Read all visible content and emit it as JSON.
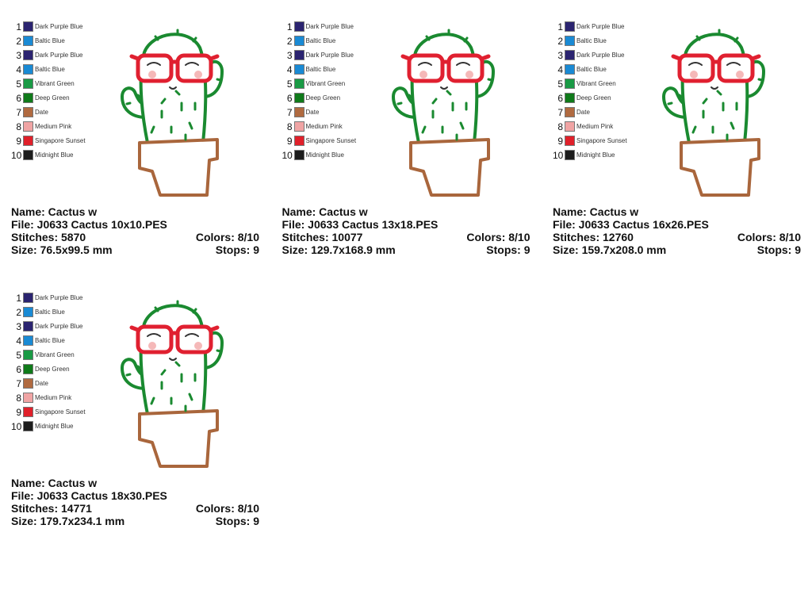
{
  "cards": [
    {
      "name": "Name: Cactus w",
      "file": "File: J0633 Cactus 10x10.PES",
      "stitches": "Stitches: 5870",
      "colors": "Colors: 8/10",
      "size": "Size: 76.5x99.5 mm",
      "stops": "Stops: 9"
    },
    {
      "name": "Name: Cactus w",
      "file": "File: J0633 Cactus 13x18.PES",
      "stitches": "Stitches: 10077",
      "colors": "Colors: 8/10",
      "size": "Size: 129.7x168.9 mm",
      "stops": "Stops: 9"
    },
    {
      "name": "Name: Cactus w",
      "file": "File: J0633 Cactus 16x26.PES",
      "stitches": "Stitches: 12760",
      "colors": "Colors: 8/10",
      "size": "Size: 159.7x208.0 mm",
      "stops": "Stops: 9"
    },
    {
      "name": "Name: Cactus w",
      "file": "File: J0633 Cactus 18x30.PES",
      "stitches": "Stitches: 14771",
      "colors": "Colors: 8/10",
      "size": "Size: 179.7x234.1 mm",
      "stops": "Stops: 9"
    }
  ],
  "palette": [
    {
      "number": 1,
      "name": "Dark Purple Blue",
      "color": "#2b2470"
    },
    {
      "number": 2,
      "name": "Baltic Blue",
      "color": "#1a8ad4"
    },
    {
      "number": 3,
      "name": "Dark Purple Blue",
      "color": "#2b2470"
    },
    {
      "number": 4,
      "name": "Baltic Blue",
      "color": "#1a8ad4"
    },
    {
      "number": 5,
      "name": "Vibrant Green",
      "color": "#1a9a45"
    },
    {
      "number": 6,
      "name": "Deep Green",
      "color": "#0f7a1a"
    },
    {
      "number": 7,
      "name": "Date",
      "color": "#b06a40"
    },
    {
      "number": 8,
      "name": "Medium Pink",
      "color": "#f0a4a4"
    },
    {
      "number": 9,
      "name": "Singapore Sunset",
      "color": "#e0202a"
    },
    {
      "number": 10,
      "name": "Midnight Blue",
      "color": "#1c1c1c"
    }
  ]
}
